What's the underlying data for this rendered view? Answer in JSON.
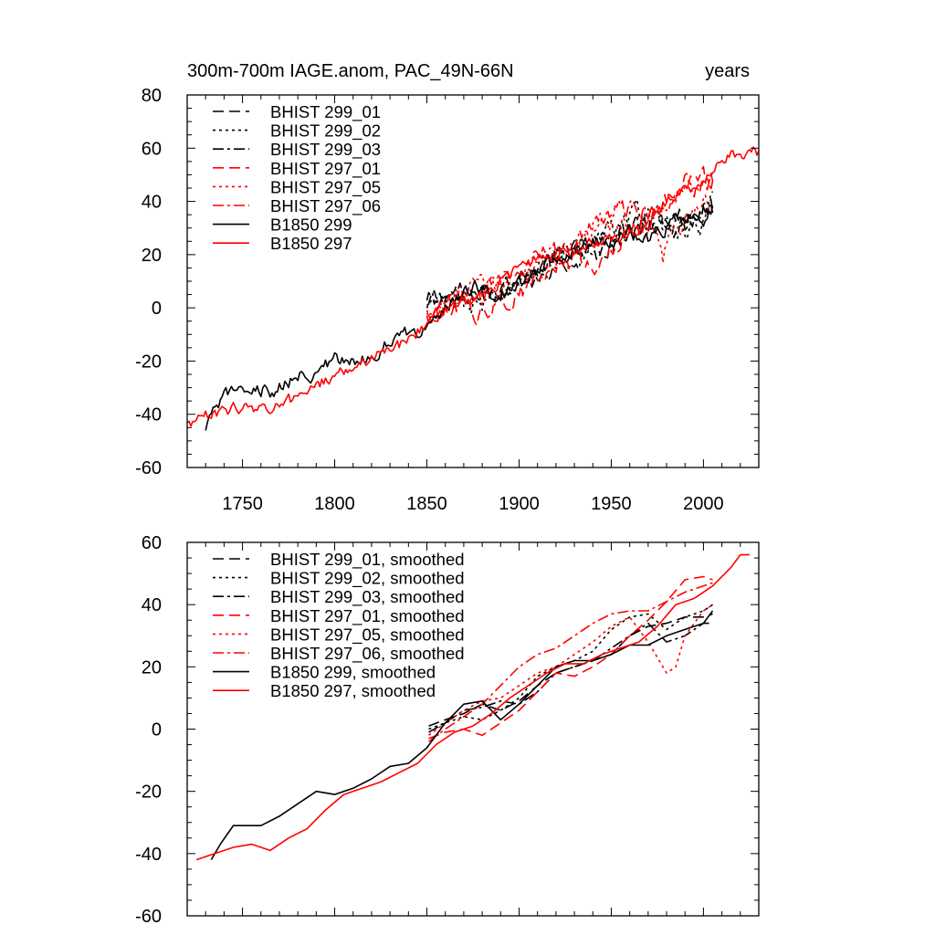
{
  "chart_data": [
    {
      "type": "line",
      "title_left": "300m-700m IAGE.anom, PAC_49N-66N",
      "title_right": "years",
      "xlim": [
        1720,
        2030
      ],
      "ylim": [
        -60,
        80
      ],
      "xticks": [
        1750,
        1800,
        1850,
        1900,
        1950,
        2000
      ],
      "yticks": [
        -60,
        -40,
        -20,
        0,
        20,
        40,
        60,
        80
      ],
      "show_x_tick_labels": true,
      "legend_position": "top-left",
      "series": [
        {
          "name": "BHIST 299_01",
          "color": "#000000",
          "dash": "dash",
          "x": [
            1850,
            1865,
            1880,
            1895,
            1910,
            1925,
            1940,
            1955,
            1970,
            1985,
            2000,
            2005
          ],
          "y": [
            2,
            6,
            4,
            9,
            14,
            20,
            22,
            29,
            33,
            34,
            38,
            34
          ],
          "noise": 4
        },
        {
          "name": "BHIST 299_02",
          "color": "#000000",
          "dash": "dot",
          "x": [
            1850,
            1865,
            1880,
            1895,
            1910,
            1925,
            1940,
            1955,
            1970,
            1985,
            2000,
            2005
          ],
          "y": [
            -1,
            3,
            1,
            6,
            16,
            22,
            24,
            33,
            37,
            30,
            31,
            40
          ],
          "noise": 4
        },
        {
          "name": "BHIST 299_03",
          "color": "#000000",
          "dash": "dashdot",
          "x": [
            1850,
            1865,
            1880,
            1895,
            1910,
            1925,
            1940,
            1955,
            1970,
            1985,
            2000,
            2005
          ],
          "y": [
            0,
            4,
            7,
            8,
            12,
            18,
            20,
            26,
            32,
            28,
            36,
            38
          ],
          "noise": 4
        },
        {
          "name": "BHIST 297_01",
          "color": "#ff0000",
          "dash": "dash",
          "x": [
            1850,
            1865,
            1880,
            1895,
            1910,
            1925,
            1940,
            1955,
            1970,
            1985,
            2000,
            2005
          ],
          "y": [
            -3,
            0,
            -2,
            3,
            10,
            18,
            16,
            26,
            34,
            45,
            50,
            48
          ],
          "noise": 4
        },
        {
          "name": "BHIST 297_05",
          "color": "#ff0000",
          "dash": "dot",
          "x": [
            1850,
            1865,
            1880,
            1895,
            1910,
            1925,
            1940,
            1955,
            1970,
            1978,
            1985,
            2000,
            2005
          ],
          "y": [
            -2,
            4,
            8,
            10,
            18,
            20,
            28,
            34,
            30,
            18,
            30,
            40,
            40
          ],
          "noise": 4
        },
        {
          "name": "BHIST 297_06",
          "color": "#ff0000",
          "dash": "dashdot",
          "x": [
            1850,
            1865,
            1880,
            1895,
            1910,
            1925,
            1940,
            1955,
            1970,
            1985,
            2000,
            2005
          ],
          "y": [
            -4,
            2,
            5,
            12,
            20,
            22,
            30,
            38,
            36,
            42,
            46,
            47
          ],
          "noise": 4
        },
        {
          "name": "B1850 299",
          "color": "#000000",
          "dash": "solid",
          "x": [
            1730,
            1735,
            1740,
            1750,
            1760,
            1770,
            1780,
            1790,
            1800,
            1810,
            1820,
            1830,
            1840,
            1850,
            1860,
            1870,
            1880,
            1890,
            1900,
            1910,
            1920,
            1930,
            1940,
            1950,
            1960,
            1970,
            1980,
            1990,
            2000,
            2005
          ],
          "y": [
            -47,
            -38,
            -34,
            -28,
            -32,
            -30,
            -26,
            -24,
            -20,
            -21,
            -18,
            -12,
            -10,
            -6,
            0,
            6,
            8,
            4,
            10,
            14,
            20,
            22,
            24,
            26,
            28,
            26,
            30,
            36,
            32,
            38
          ],
          "noise": 3
        },
        {
          "name": "B1850 297",
          "color": "#ff0000",
          "dash": "solid",
          "x": [
            1720,
            1730,
            1740,
            1750,
            1760,
            1770,
            1780,
            1790,
            1800,
            1810,
            1820,
            1830,
            1840,
            1850,
            1860,
            1870,
            1880,
            1890,
            1900,
            1910,
            1920,
            1930,
            1940,
            1950,
            1960,
            1970,
            1980,
            1990,
            2000,
            2010,
            2015,
            2020,
            2025,
            2030
          ],
          "y": [
            -44,
            -41,
            -39,
            -37,
            -38,
            -36,
            -34,
            -30,
            -25,
            -22,
            -19,
            -16,
            -12,
            -5,
            0,
            2,
            6,
            10,
            14,
            18,
            20,
            22,
            24,
            26,
            28,
            32,
            40,
            44,
            48,
            54,
            58,
            56,
            58,
            59
          ],
          "noise": 2.5
        }
      ]
    },
    {
      "type": "line",
      "title_left": "",
      "title_right": "",
      "xlim": [
        1720,
        2030
      ],
      "ylim": [
        -60,
        60
      ],
      "xticks": [
        1750,
        1800,
        1850,
        1900,
        1950,
        2000
      ],
      "yticks": [
        -60,
        -40,
        -20,
        0,
        20,
        40,
        60
      ],
      "show_x_tick_labels": false,
      "legend_position": "top-left",
      "series": [
        {
          "name": "BHIST 299_01, smoothed",
          "color": "#000000",
          "dash": "dash",
          "x": [
            1851,
            1860,
            1870,
            1880,
            1890,
            1900,
            1910,
            1920,
            1930,
            1940,
            1950,
            1960,
            1970,
            1980,
            1990,
            2000,
            2005
          ],
          "y": [
            1,
            3,
            5,
            8,
            6,
            9,
            14,
            18,
            20,
            22,
            24,
            30,
            33,
            34,
            36,
            36,
            37
          ],
          "noise": 0
        },
        {
          "name": "BHIST 299_02, smoothed",
          "color": "#000000",
          "dash": "dot",
          "x": [
            1851,
            1860,
            1870,
            1880,
            1890,
            1900,
            1910,
            1920,
            1930,
            1940,
            1950,
            1960,
            1970,
            1980,
            1990,
            2000,
            2005
          ],
          "y": [
            0,
            2,
            4,
            3,
            6,
            10,
            17,
            20,
            22,
            25,
            32,
            36,
            37,
            32,
            36,
            38,
            40
          ],
          "noise": 0
        },
        {
          "name": "BHIST 299_03, smoothed",
          "color": "#000000",
          "dash": "dashdot",
          "x": [
            1851,
            1860,
            1870,
            1880,
            1890,
            1900,
            1910,
            1920,
            1930,
            1940,
            1950,
            1960,
            1970,
            1980,
            1990,
            2000,
            2005
          ],
          "y": [
            -1,
            2,
            6,
            7,
            9,
            8,
            12,
            18,
            20,
            22,
            26,
            30,
            34,
            28,
            30,
            34,
            34
          ],
          "noise": 0
        },
        {
          "name": "BHIST 297_01, smoothed",
          "color": "#ff0000",
          "dash": "dash",
          "x": [
            1851,
            1860,
            1870,
            1880,
            1890,
            1900,
            1910,
            1920,
            1930,
            1940,
            1950,
            1960,
            1970,
            1980,
            1990,
            2000,
            2005
          ],
          "y": [
            -3,
            -1,
            0,
            -2,
            2,
            6,
            12,
            18,
            17,
            20,
            24,
            30,
            35,
            41,
            48,
            49,
            48
          ],
          "noise": 0
        },
        {
          "name": "BHIST 297_05, smoothed",
          "color": "#ff0000",
          "dash": "dot",
          "x": [
            1851,
            1860,
            1870,
            1880,
            1890,
            1900,
            1910,
            1920,
            1930,
            1940,
            1950,
            1960,
            1970,
            1976,
            1980,
            1985,
            1990,
            2000,
            2005
          ],
          "y": [
            -2,
            2,
            6,
            9,
            10,
            14,
            18,
            20,
            24,
            28,
            33,
            36,
            28,
            22,
            18,
            20,
            30,
            38,
            40
          ],
          "noise": 0
        },
        {
          "name": "BHIST 297_06, smoothed",
          "color": "#ff0000",
          "dash": "dashdot",
          "x": [
            1851,
            1860,
            1870,
            1880,
            1890,
            1900,
            1910,
            1920,
            1930,
            1940,
            1950,
            1960,
            1970,
            1980,
            1990,
            2000,
            2005
          ],
          "y": [
            -4,
            0,
            4,
            8,
            14,
            20,
            24,
            26,
            30,
            34,
            37,
            38,
            38,
            41,
            44,
            46,
            47
          ],
          "noise": 0
        },
        {
          "name": "B1850 299, smoothed",
          "color": "#000000",
          "dash": "solid",
          "x": [
            1733,
            1738,
            1745,
            1752,
            1760,
            1770,
            1780,
            1790,
            1800,
            1810,
            1820,
            1830,
            1840,
            1850,
            1860,
            1870,
            1880,
            1890,
            1900,
            1910,
            1920,
            1930,
            1940,
            1950,
            1960,
            1970,
            1980,
            1990,
            2000,
            2005
          ],
          "y": [
            -42,
            -37,
            -31,
            -31,
            -31,
            -28,
            -24,
            -20,
            -21,
            -19,
            -16,
            -12,
            -11,
            -6,
            2,
            8,
            9,
            3,
            8,
            14,
            20,
            22,
            22,
            24,
            27,
            27,
            30,
            32,
            34,
            38
          ],
          "noise": 0
        },
        {
          "name": "B1850 297, smoothed",
          "color": "#ff0000",
          "dash": "solid",
          "x": [
            1725,
            1735,
            1745,
            1755,
            1765,
            1775,
            1785,
            1795,
            1805,
            1815,
            1825,
            1835,
            1845,
            1855,
            1865,
            1875,
            1885,
            1895,
            1905,
            1915,
            1925,
            1935,
            1945,
            1955,
            1965,
            1975,
            1985,
            1995,
            2005,
            2015,
            2020,
            2025
          ],
          "y": [
            -42,
            -40,
            -38,
            -37,
            -39,
            -35,
            -32,
            -26,
            -21,
            -19,
            -17,
            -14,
            -11,
            -5,
            -1,
            1,
            5,
            10,
            14,
            18,
            21,
            21,
            24,
            26,
            28,
            33,
            40,
            42,
            46,
            52,
            56,
            56
          ],
          "noise": 0
        }
      ]
    }
  ]
}
